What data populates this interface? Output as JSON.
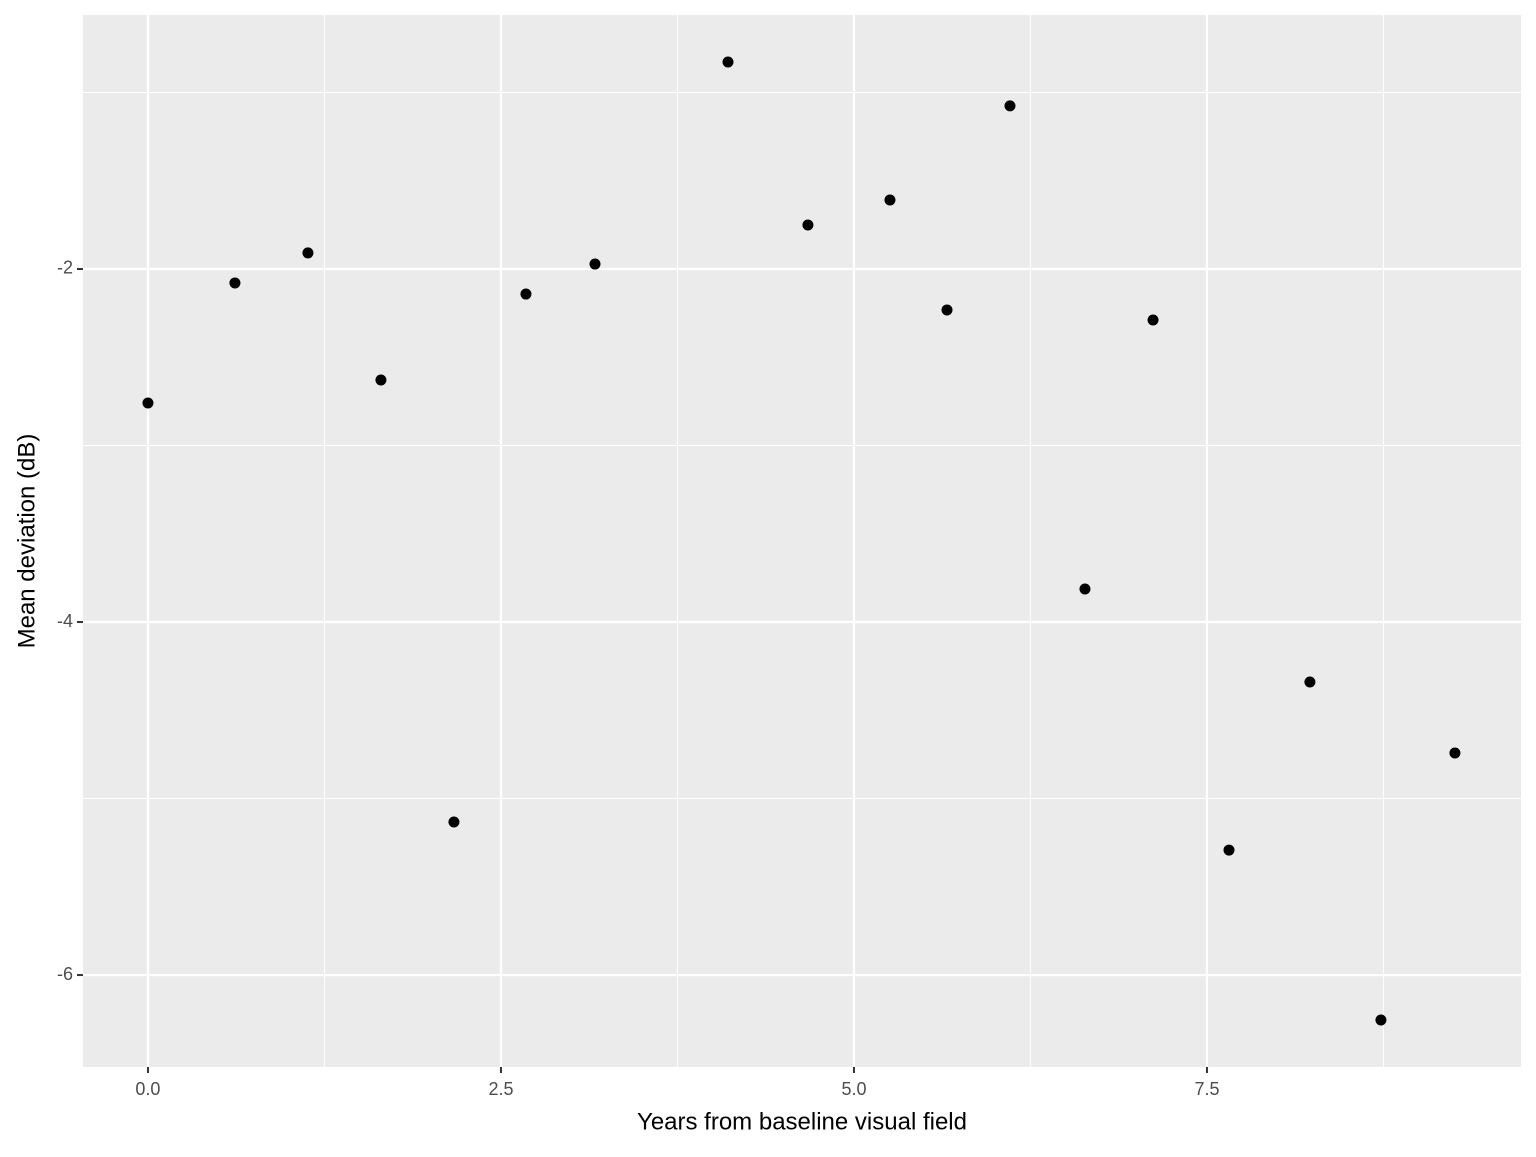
{
  "chart_data": {
    "type": "scatter",
    "x_label": "Years from baseline visual field",
    "y_label": "Mean deviation (dB)",
    "x": [
      0,
      0.616,
      1.133,
      1.65,
      2.167,
      2.677,
      3.166,
      4.108,
      4.674,
      5.255,
      5.659,
      6.105,
      6.636,
      7.118,
      7.656,
      8.229,
      8.732,
      9.256
    ],
    "values": [
      -2.759,
      -2.079,
      -1.909,
      -2.629,
      -5.133,
      -2.142,
      -1.972,
      -0.827,
      -1.751,
      -1.609,
      -2.232,
      -1.076,
      -3.813,
      -2.289,
      -5.292,
      -4.34,
      -6.255,
      -4.742
    ],
    "color": "#000000",
    "xlim": [
      -0.46,
      9.724
    ],
    "ylim": [
      -6.521,
      -0.561
    ],
    "xticks": [
      {
        "value": 0,
        "label": "0.0"
      },
      2.5,
      {
        "value": 5,
        "label": "5.0"
      },
      7.5
    ],
    "yticks": [
      -2,
      -4,
      -6
    ],
    "xminor": [
      1.25,
      3.75,
      6.25,
      8.75
    ],
    "yminor": [
      -1,
      -3,
      -5
    ],
    "grid": true
  }
}
